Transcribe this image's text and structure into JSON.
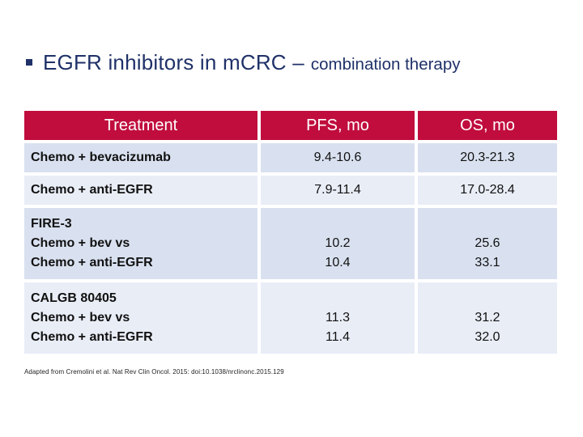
{
  "slide": {
    "title": {
      "main": "EGFR inhibitors in mCRC –",
      "sub": "combination therapy"
    },
    "table": {
      "headers": [
        "Treatment",
        "PFS, mo",
        "OS, mo"
      ],
      "rows": [
        {
          "treatment": "Chemo + bevacizumab",
          "pfs": "9.4-10.6",
          "os": "20.3-21.3"
        },
        {
          "treatment": "Chemo + anti-EGFR",
          "pfs": "7.9-11.4",
          "os": "17.0-28.4"
        },
        {
          "treatment": "FIRE-3\nChemo + bev vs\nChemo + anti-EGFR",
          "pfs": "10.2\n10.4",
          "os": "25.6\n33.1"
        },
        {
          "treatment": "CALGB 80405\nChemo + bev vs\nChemo + anti-EGFR",
          "pfs": "11.3\n11.4",
          "os": "31.2\n32.0"
        }
      ]
    },
    "footnote": "Adapted from Cremolini et al. Nat Rev Clin Oncol. 2015: doi:10.1038/nrclinonc.2015.129",
    "colors": {
      "header_bg": "#C00D3D",
      "row_band_dark": "#D9E1F0",
      "row_band_light": "#E9EDF6",
      "title_text": "#1F3168",
      "header_text": "#FFFFFF"
    }
  }
}
